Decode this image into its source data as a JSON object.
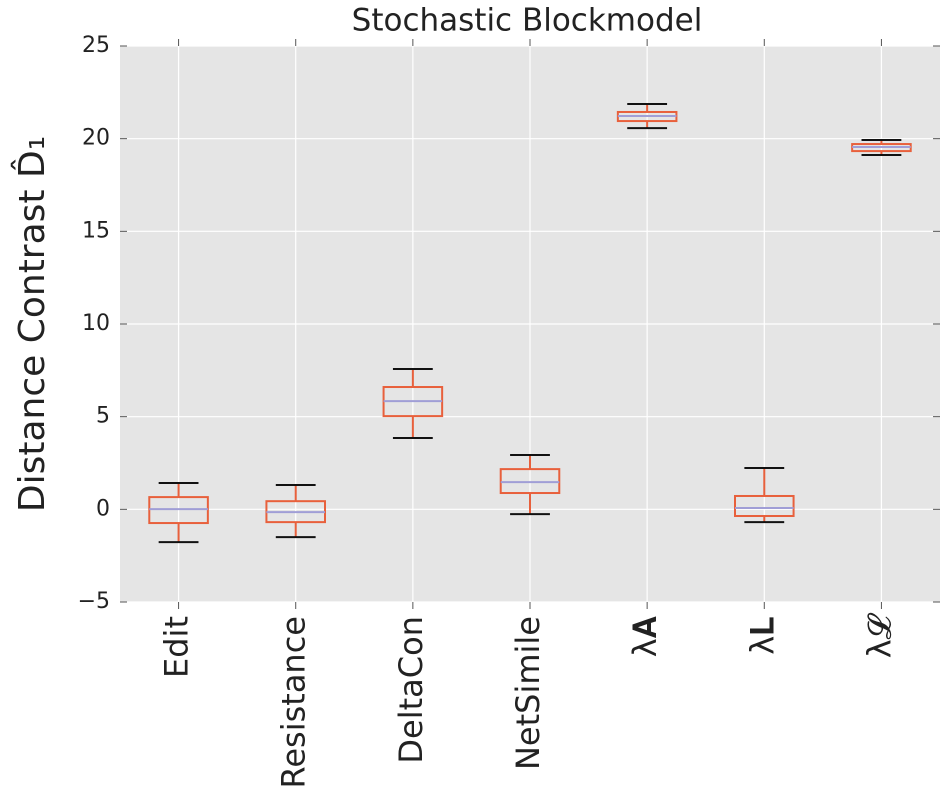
{
  "chart_data": {
    "type": "box",
    "title": "Stochastic Blockmodel",
    "y_label": "Distance Contrast  D̂₁",
    "categories": [
      "Edit",
      "Resistance",
      "DeltaCon",
      "NetSimile",
      "λ𝐀",
      "λ𝐋",
      "λ𝓛"
    ],
    "boxes": [
      {
        "min": -1.77,
        "q1": -0.74,
        "median": 0.01,
        "q3": 0.66,
        "max": 1.42
      },
      {
        "min": -1.5,
        "q1": -0.69,
        "median": -0.15,
        "q3": 0.44,
        "max": 1.31
      },
      {
        "min": 3.85,
        "q1": 5.03,
        "median": 5.84,
        "q3": 6.6,
        "max": 7.57
      },
      {
        "min": -0.26,
        "q1": 0.88,
        "median": 1.47,
        "q3": 2.17,
        "max": 2.93
      },
      {
        "min": 20.57,
        "q1": 20.95,
        "median": 21.22,
        "q3": 21.44,
        "max": 21.87
      },
      {
        "min": -0.69,
        "q1": -0.36,
        "median": 0.07,
        "q3": 0.72,
        "max": 2.23
      },
      {
        "min": 19.12,
        "q1": 19.33,
        "median": 19.55,
        "q3": 19.71,
        "max": 19.93
      }
    ],
    "box_color": "#e8603c",
    "median_color": "#a09ed6",
    "cap_color": "#111111",
    "ylim": [
      -5,
      25
    ],
    "yticks": [
      {
        "value": -5,
        "label": "−5"
      },
      0,
      5,
      10,
      15,
      20,
      25
    ],
    "grid": true
  }
}
